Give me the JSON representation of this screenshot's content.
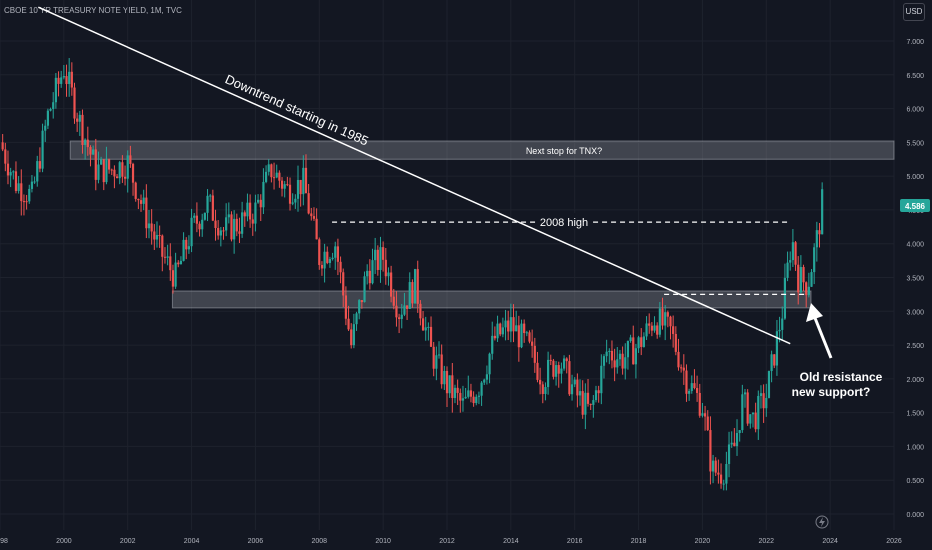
{
  "header": {
    "title": "CBOE 10 YR TREASURY NOTE YIELD, 1M, TVC"
  },
  "currency": "USD",
  "price_tag": "4.586",
  "annotations": {
    "trendline": "Downtrend starting in 1985",
    "zone_top": "Next stop for TNX?",
    "high_line": "2008 high",
    "arrow_note_1": "Old resistance",
    "arrow_note_2": "new support?"
  },
  "colors": {
    "background": "#131722",
    "up": "#26a69a",
    "down": "#ef5350",
    "price_tag": "#26a69a"
  },
  "chart_data": {
    "type": "candlestick",
    "title": "CBOE 10 YR TREASURY NOTE YIELD, 1M, TVC",
    "x_tick_labels": [
      "98",
      "2000",
      "2002",
      "2004",
      "2006",
      "2008",
      "2010",
      "2012",
      "2014",
      "2016",
      "2018",
      "2020",
      "2022",
      "2024",
      "2026"
    ],
    "y_tick_labels": [
      "0.000",
      "0.500",
      "1.000",
      "1.500",
      "2.000",
      "2.500",
      "3.000",
      "3.500",
      "4.000",
      "4.500",
      "5.000",
      "5.500",
      "6.000",
      "6.500",
      "7.000"
    ],
    "ylim": [
      0,
      7.5
    ],
    "xlim": [
      1998.0,
      2026.0
    ],
    "grid": true,
    "series": [
      {
        "kind": "close_path_yearly",
        "points": [
          [
            1998.0,
            5.5
          ],
          [
            1998.5,
            4.9
          ],
          [
            1999.0,
            4.7
          ],
          [
            1999.5,
            5.9
          ],
          [
            2000.0,
            6.6
          ],
          [
            2000.5,
            5.8
          ],
          [
            2001.0,
            5.1
          ],
          [
            2001.5,
            5.1
          ],
          [
            2002.0,
            5.2
          ],
          [
            2002.5,
            4.5
          ],
          [
            2003.0,
            3.9
          ],
          [
            2003.5,
            3.5
          ],
          [
            2004.0,
            4.2
          ],
          [
            2004.5,
            4.6
          ],
          [
            2005.0,
            4.2
          ],
          [
            2005.5,
            4.3
          ],
          [
            2006.0,
            4.5
          ],
          [
            2006.5,
            5.1
          ],
          [
            2007.0,
            4.8
          ],
          [
            2007.5,
            4.9
          ],
          [
            2008.0,
            3.8
          ],
          [
            2008.5,
            4.0
          ],
          [
            2009.0,
            2.5
          ],
          [
            2009.5,
            3.6
          ],
          [
            2010.0,
            3.8
          ],
          [
            2010.5,
            3.0
          ],
          [
            2011.0,
            3.4
          ],
          [
            2011.5,
            2.4
          ],
          [
            2012.0,
            1.9
          ],
          [
            2012.5,
            1.6
          ],
          [
            2013.0,
            1.9
          ],
          [
            2013.5,
            2.6
          ],
          [
            2014.0,
            2.8
          ],
          [
            2014.5,
            2.5
          ],
          [
            2015.0,
            2.0
          ],
          [
            2015.5,
            2.3
          ],
          [
            2016.0,
            1.8
          ],
          [
            2016.5,
            1.5
          ],
          [
            2017.0,
            2.4
          ],
          [
            2017.5,
            2.3
          ],
          [
            2018.0,
            2.5
          ],
          [
            2018.5,
            2.9
          ],
          [
            2019.0,
            2.7
          ],
          [
            2019.5,
            2.0
          ],
          [
            2020.0,
            1.6
          ],
          [
            2020.3,
            0.65
          ],
          [
            2020.6,
            0.6
          ],
          [
            2021.0,
            1.0
          ],
          [
            2021.25,
            1.65
          ],
          [
            2021.6,
            1.4
          ],
          [
            2022.0,
            1.75
          ],
          [
            2022.5,
            3.0
          ],
          [
            2022.8,
            4.1
          ],
          [
            2023.0,
            3.5
          ],
          [
            2023.3,
            3.4
          ],
          [
            2023.6,
            4.1
          ],
          [
            2023.75,
            4.59
          ]
        ]
      }
    ],
    "reference_lines": [
      {
        "label": "Downtrend starting in 1985",
        "from": [
          1999.2,
          7.5
        ],
        "to": [
          2022.75,
          2.52
        ]
      },
      {
        "label": "2008 high",
        "y": 4.32,
        "x_range": [
          2008.4,
          2022.7
        ]
      },
      {
        "y": 3.25,
        "x_range": [
          2018.8,
          2023.3
        ]
      }
    ],
    "zones": [
      {
        "label": "Next stop for TNX?",
        "y_range": [
          5.25,
          5.52
        ],
        "x_range": [
          2000.2,
          2026.0
        ]
      },
      {
        "y_range": [
          3.05,
          3.3
        ],
        "x_range": [
          2003.4,
          2023.4
        ]
      }
    ],
    "last_value": 4.586
  }
}
